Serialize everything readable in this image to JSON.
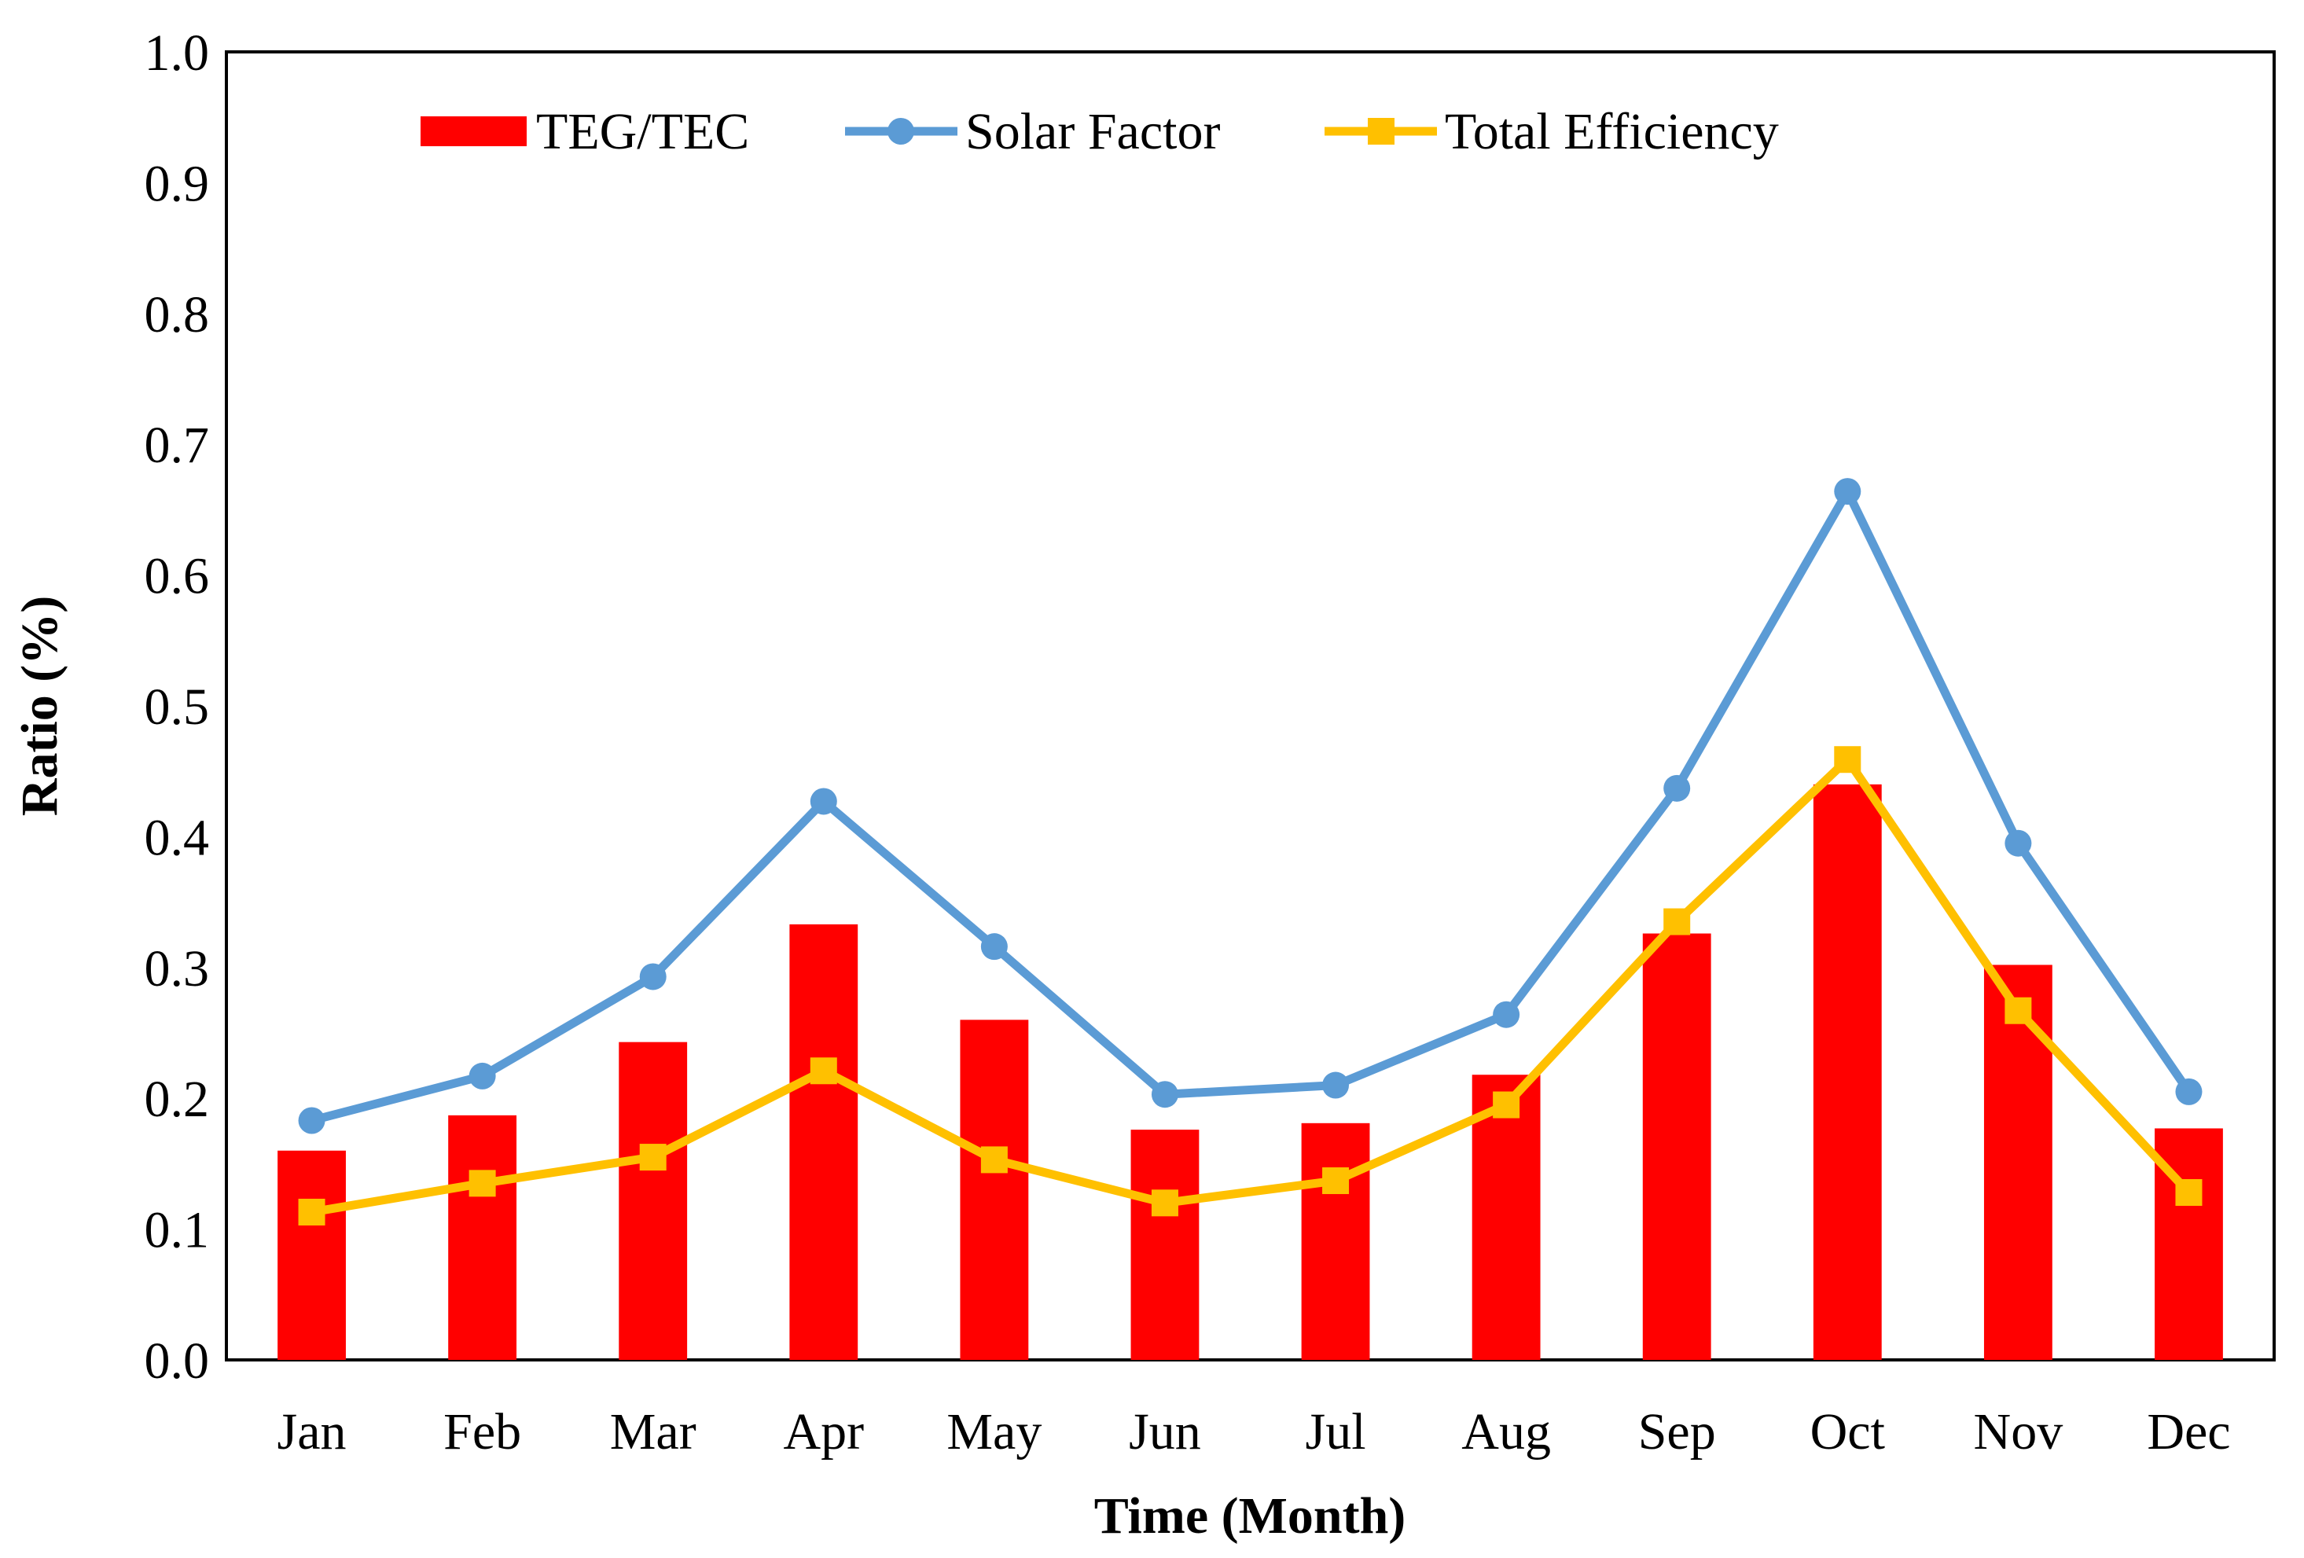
{
  "chart_data": {
    "type": "bar",
    "title": "",
    "xlabel": "Time (Month)",
    "ylabel": "Ratio (%)",
    "ylim": [
      0,
      1.0
    ],
    "yticks": [
      "0.0",
      "0.1",
      "0.2",
      "0.3",
      "0.4",
      "0.5",
      "0.6",
      "0.7",
      "0.8",
      "0.9",
      "1.0"
    ],
    "categories": [
      "Jan",
      "Feb",
      "Mar",
      "Apr",
      "May",
      "Jun",
      "Jul",
      "Aug",
      "Sep",
      "Oct",
      "Nov",
      "Dec"
    ],
    "grid": false,
    "legend_position": "top",
    "series": [
      {
        "name": "TEG/TEC",
        "kind": "bar",
        "color": "#ff0000",
        "values": [
          0.16,
          0.187,
          0.243,
          0.333,
          0.26,
          0.176,
          0.181,
          0.218,
          0.326,
          0.44,
          0.302,
          0.177
        ]
      },
      {
        "name": "Solar Factor",
        "kind": "line",
        "marker": "circle",
        "color": "#5b9bd5",
        "values": [
          0.183,
          0.217,
          0.293,
          0.427,
          0.316,
          0.203,
          0.21,
          0.264,
          0.437,
          0.664,
          0.395,
          0.205
        ]
      },
      {
        "name": "Total Efficiency",
        "kind": "line",
        "marker": "square",
        "color": "#ffc000",
        "values": [
          0.113,
          0.135,
          0.155,
          0.221,
          0.153,
          0.12,
          0.137,
          0.195,
          0.335,
          0.459,
          0.267,
          0.128
        ]
      }
    ]
  }
}
